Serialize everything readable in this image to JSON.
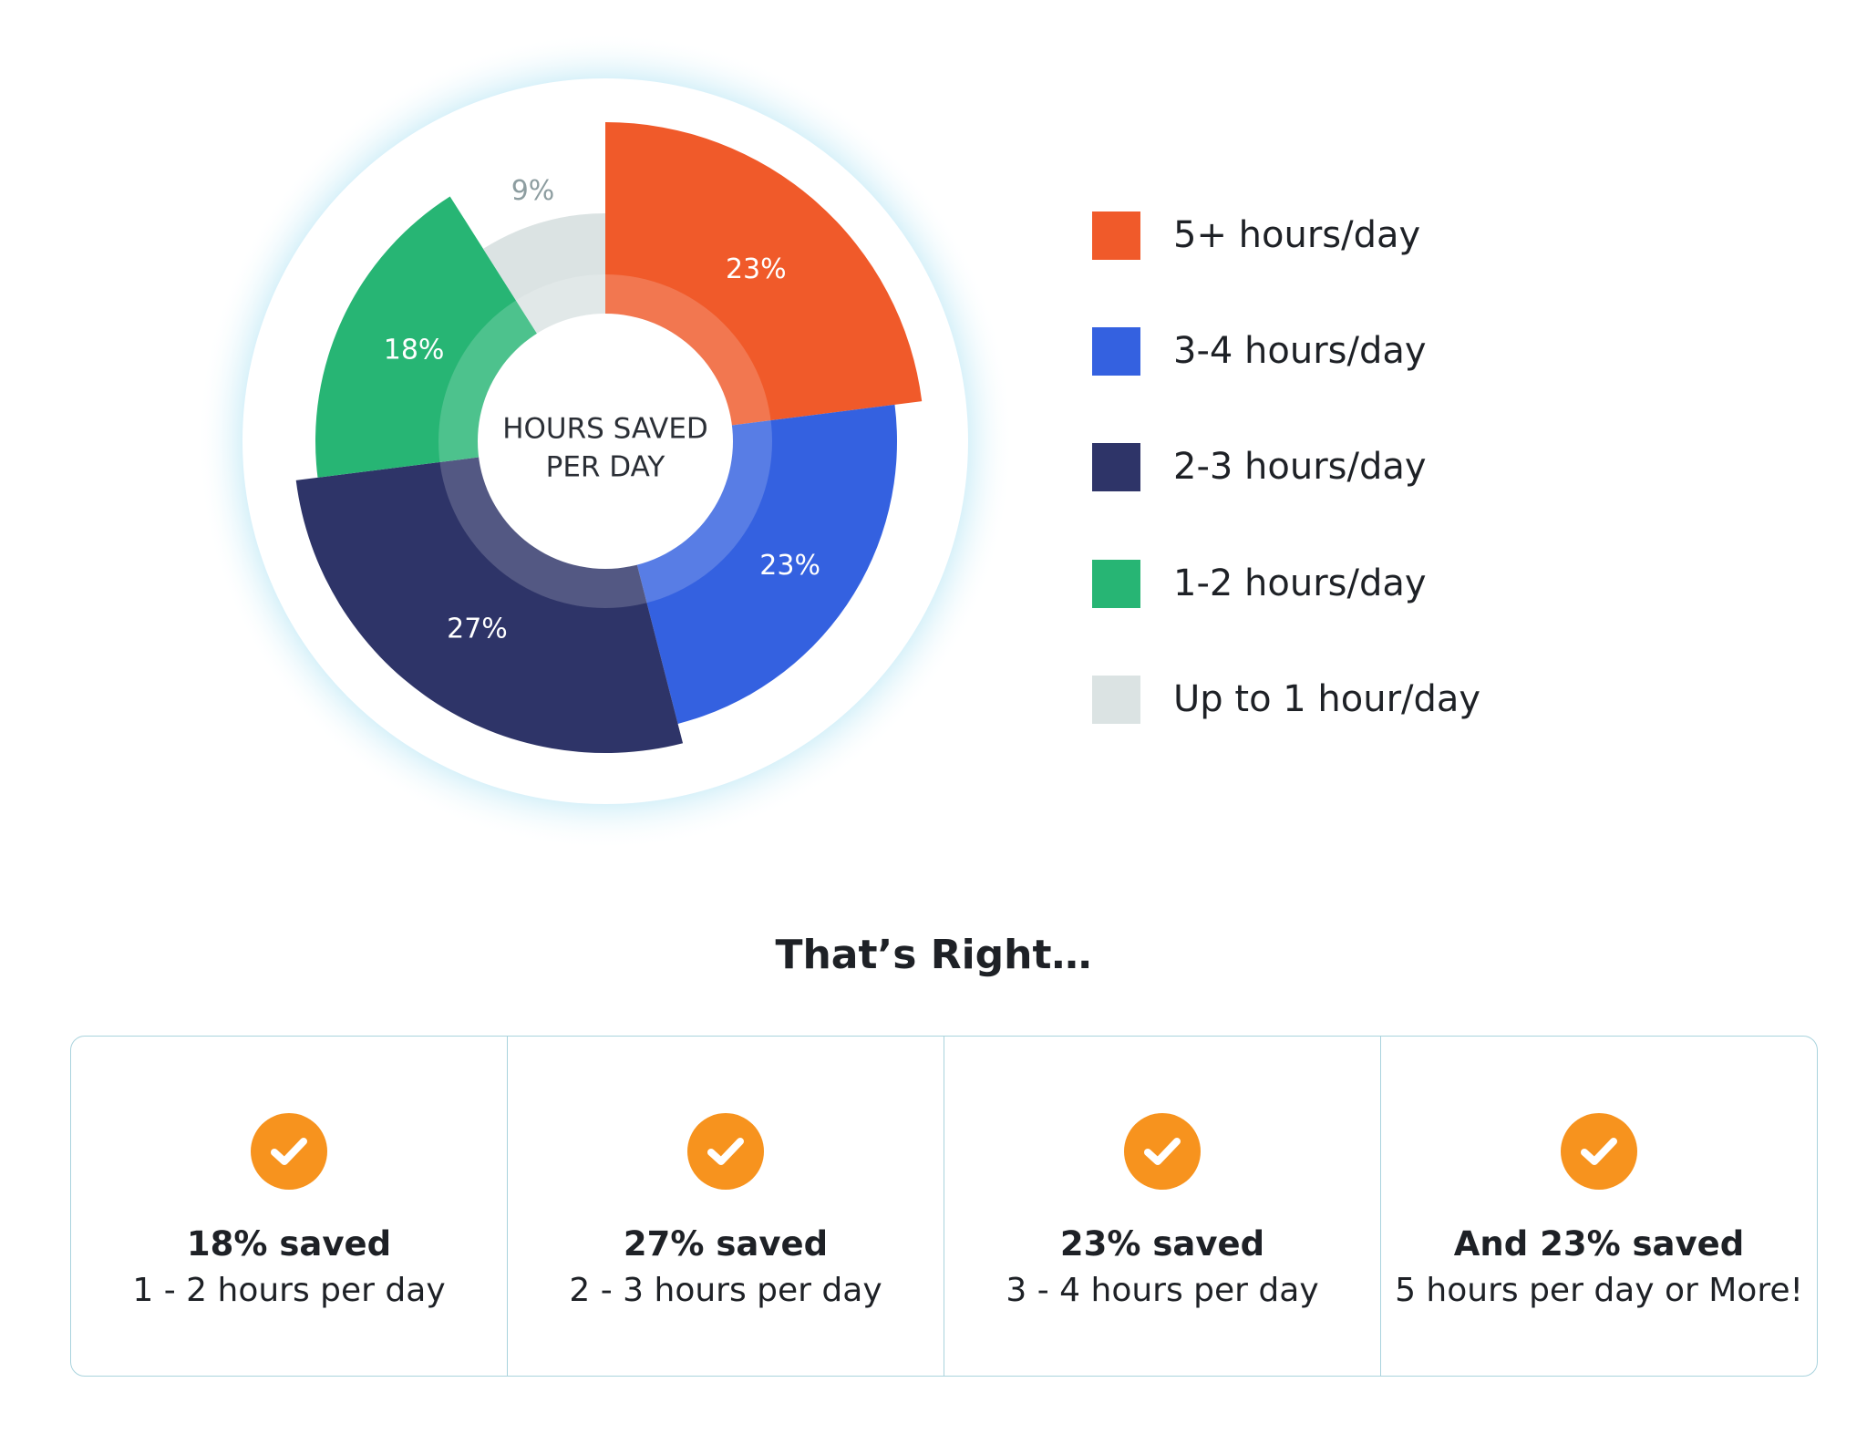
{
  "chart_data": {
    "type": "pie",
    "center_label": [
      "HOURS SAVED",
      "PER DAY"
    ],
    "slices": [
      {
        "label": "5+ hours/day",
        "value": 23,
        "value_label": "23%",
        "color": "#f05a2a"
      },
      {
        "label": "3-4 hours/day",
        "value": 23,
        "value_label": "23%",
        "color": "#3461e0"
      },
      {
        "label": "2-3 hours/day",
        "value": 27,
        "value_label": "27%",
        "color": "#2e3468"
      },
      {
        "label": "1-2 hours/day",
        "value": 18,
        "value_label": "18%",
        "color": "#27b574"
      },
      {
        "label": "Up to 1 hour/day",
        "value": 9,
        "value_label": "9%",
        "color": "#dbe3e3"
      }
    ],
    "legend_position": "right"
  },
  "summary": {
    "heading": "That’s Right…",
    "items": [
      {
        "title": "18% saved",
        "description": "1 - 2 hours per day"
      },
      {
        "title": "27% saved",
        "description": "2 - 3 hours per day"
      },
      {
        "title": "23% saved",
        "description": "3 - 4 hours per day"
      },
      {
        "title": "And 23% saved",
        "description": "5 hours per day or More!"
      }
    ],
    "icon": "check-circle-icon",
    "icon_color": "#f7931e",
    "border_color": "#a9d3dd"
  }
}
